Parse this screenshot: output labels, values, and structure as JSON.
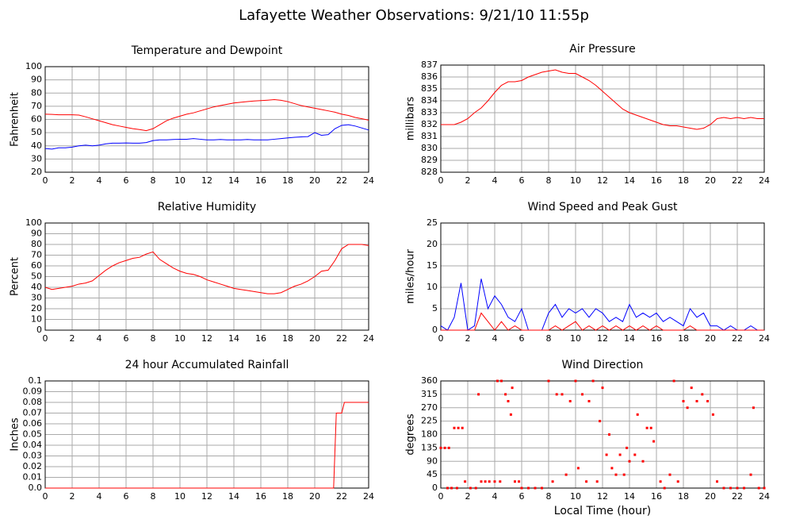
{
  "title": "Lafayette Weather Observations: 9/21/10 11:55p",
  "chart_data": [
    {
      "type": "line",
      "title": "Temperature and Dewpoint",
      "ylabel": "Fahrenheit",
      "x": [
        0,
        0.5,
        1,
        1.5,
        2,
        2.5,
        3,
        3.5,
        4,
        4.5,
        5,
        5.5,
        6,
        6.5,
        7,
        7.5,
        8,
        8.5,
        9,
        9.5,
        10,
        10.5,
        11,
        11.5,
        12,
        12.5,
        13,
        13.5,
        14,
        14.5,
        15,
        15.5,
        16,
        16.5,
        17,
        17.5,
        18,
        18.5,
        19,
        19.5,
        20,
        20.5,
        21,
        21.5,
        22,
        22.5,
        23,
        23.5,
        24
      ],
      "series": [
        {
          "color": "#ff0000",
          "values": [
            64,
            63.8,
            63.5,
            63.5,
            63.5,
            63.3,
            62,
            60.5,
            59,
            57.5,
            56,
            55,
            54,
            53,
            52.3,
            51.5,
            53,
            56,
            59,
            61,
            62.5,
            64,
            65,
            66.5,
            68,
            69.5,
            70.5,
            71.5,
            72.5,
            73,
            73.5,
            74,
            74.3,
            74.6,
            75,
            74.5,
            73.5,
            72,
            70.5,
            69.5,
            68.5,
            67.5,
            66.5,
            65.5,
            64,
            63,
            61.5,
            60.5,
            59.5
          ]
        },
        {
          "color": "#0000ff",
          "values": [
            38,
            37.5,
            38.5,
            38.5,
            39,
            40,
            40.5,
            40,
            40.5,
            41.5,
            42,
            42,
            42.2,
            42,
            42,
            42.5,
            44,
            44.5,
            44.5,
            44.8,
            45,
            45,
            45.5,
            45,
            44.5,
            44.5,
            44.8,
            44.5,
            44.5,
            44.5,
            44.8,
            44.5,
            44.5,
            44.5,
            45,
            45.5,
            46,
            46.5,
            46.8,
            47,
            50,
            48,
            48.5,
            53,
            55.5,
            56,
            55,
            53.5,
            52
          ]
        }
      ],
      "xlim": [
        0,
        24
      ],
      "xticks": [
        0,
        2,
        4,
        6,
        8,
        10,
        12,
        14,
        16,
        18,
        20,
        22,
        24
      ],
      "ylim": [
        20,
        100
      ],
      "yticks": [
        20,
        30,
        40,
        50,
        60,
        70,
        80,
        90,
        100
      ],
      "grid": true
    },
    {
      "type": "line",
      "title": "Air Pressure",
      "ylabel": "millibars",
      "x": [
        0,
        0.5,
        1,
        1.5,
        2,
        2.5,
        3,
        3.5,
        4,
        4.5,
        5,
        5.5,
        6,
        6.5,
        7,
        7.5,
        8,
        8.5,
        9,
        9.5,
        10,
        10.5,
        11,
        11.5,
        12,
        12.5,
        13,
        13.5,
        14,
        14.5,
        15,
        15.5,
        16,
        16.5,
        17,
        17.5,
        18,
        18.5,
        19,
        19.5,
        20,
        20.5,
        21,
        21.5,
        22,
        22.5,
        23,
        23.5,
        24
      ],
      "series": [
        {
          "color": "#ff0000",
          "values": [
            832,
            832,
            832,
            832.2,
            832.5,
            833,
            833.4,
            834,
            834.7,
            835.3,
            835.6,
            835.6,
            835.7,
            836,
            836.2,
            836.4,
            836.5,
            836.6,
            836.4,
            836.3,
            836.3,
            836,
            835.7,
            835.3,
            834.8,
            834.3,
            833.8,
            833.3,
            833,
            832.8,
            832.6,
            832.4,
            832.2,
            832,
            831.9,
            831.9,
            831.8,
            831.7,
            831.6,
            831.7,
            832,
            832.5,
            832.6,
            832.5,
            832.6,
            832.5,
            832.6,
            832.5,
            832.5
          ]
        }
      ],
      "xlim": [
        0,
        24
      ],
      "xticks": [
        0,
        2,
        4,
        6,
        8,
        10,
        12,
        14,
        16,
        18,
        20,
        22,
        24
      ],
      "ylim": [
        828,
        837
      ],
      "yticks": [
        828,
        829,
        830,
        831,
        832,
        833,
        834,
        835,
        836,
        837
      ],
      "grid": true
    },
    {
      "type": "line",
      "title": "Relative Humidity",
      "ylabel": "Percent",
      "x": [
        0,
        0.5,
        1,
        1.5,
        2,
        2.5,
        3,
        3.5,
        4,
        4.5,
        5,
        5.5,
        6,
        6.5,
        7,
        7.5,
        8,
        8.5,
        9,
        9.5,
        10,
        10.5,
        11,
        11.5,
        12,
        12.5,
        13,
        13.5,
        14,
        14.5,
        15,
        15.5,
        16,
        16.5,
        17,
        17.5,
        18,
        18.5,
        19,
        19.5,
        20,
        20.5,
        21,
        21.5,
        22,
        22.5,
        23,
        23.5,
        24
      ],
      "series": [
        {
          "color": "#ff0000",
          "values": [
            40,
            38,
            39,
            40,
            41,
            43,
            44,
            46,
            51,
            56,
            60,
            63,
            65,
            67,
            68,
            71,
            73,
            66,
            62,
            58,
            55,
            53,
            52,
            50,
            47,
            45,
            43,
            41,
            39,
            38,
            37,
            36,
            35,
            34,
            34,
            35,
            38,
            41,
            43,
            46,
            50,
            55,
            56,
            65,
            76,
            80,
            80,
            80,
            79
          ]
        }
      ],
      "xlim": [
        0,
        24
      ],
      "xticks": [
        0,
        2,
        4,
        6,
        8,
        10,
        12,
        14,
        16,
        18,
        20,
        22,
        24
      ],
      "ylim": [
        0,
        100
      ],
      "yticks": [
        0,
        10,
        20,
        30,
        40,
        50,
        60,
        70,
        80,
        90,
        100
      ],
      "grid": true
    },
    {
      "type": "line",
      "title": "Wind Speed and Peak Gust",
      "ylabel": "miles/hour",
      "x": [
        0,
        0.5,
        1,
        1.5,
        2,
        2.5,
        3,
        3.5,
        4,
        4.5,
        5,
        5.5,
        6,
        6.5,
        7,
        7.5,
        8,
        8.5,
        9,
        9.5,
        10,
        10.5,
        11,
        11.5,
        12,
        12.5,
        13,
        13.5,
        14,
        14.5,
        15,
        15.5,
        16,
        16.5,
        17,
        17.5,
        18,
        18.5,
        19,
        19.5,
        20,
        20.5,
        21,
        21.5,
        22,
        22.5,
        23,
        23.5,
        24
      ],
      "series": [
        {
          "color": "#0000ff",
          "values": [
            1,
            0,
            3,
            11,
            0,
            1,
            12,
            5,
            8,
            6,
            3,
            2,
            5,
            0,
            0,
            0,
            4,
            6,
            3,
            5,
            4,
            5,
            3,
            5,
            4,
            2,
            3,
            2,
            6,
            3,
            4,
            3,
            4,
            2,
            3,
            2,
            1,
            5,
            3,
            4,
            1,
            1,
            0,
            1,
            0,
            0,
            1,
            0,
            0
          ]
        },
        {
          "color": "#ff0000",
          "values": [
            0,
            0,
            0,
            0,
            0,
            0,
            4,
            2,
            0,
            2,
            0,
            1,
            0,
            0,
            0,
            0,
            0,
            1,
            0,
            1,
            2,
            0,
            1,
            0,
            1,
            0,
            1,
            0,
            1,
            0,
            1,
            0,
            1,
            0,
            0,
            0,
            0,
            1,
            0,
            0,
            0,
            0,
            0,
            0,
            0,
            0,
            0,
            0,
            0
          ]
        }
      ],
      "xlim": [
        0,
        24
      ],
      "xticks": [
        0,
        2,
        4,
        6,
        8,
        10,
        12,
        14,
        16,
        18,
        20,
        22,
        24
      ],
      "ylim": [
        0,
        25
      ],
      "yticks": [
        0,
        5,
        10,
        15,
        20,
        25
      ],
      "grid": true
    },
    {
      "type": "line",
      "title": "24 hour Accumulated Rainfall",
      "ylabel": "Inches",
      "x": [
        0,
        21.4,
        21.6,
        22,
        22.2,
        24
      ],
      "series": [
        {
          "color": "#ff0000",
          "values": [
            0,
            0,
            0.07,
            0.07,
            0.08,
            0.08
          ]
        }
      ],
      "xlim": [
        0,
        24
      ],
      "xticks": [
        0,
        2,
        4,
        6,
        8,
        10,
        12,
        14,
        16,
        18,
        20,
        22,
        24
      ],
      "ylim": [
        0,
        0.1
      ],
      "yticks": [
        {
          "value": 0,
          "label": "0.0"
        },
        0.01,
        0.02,
        0.03,
        0.04,
        0.05,
        0.06,
        0.07,
        0.08,
        0.09,
        0.1
      ],
      "grid": true
    },
    {
      "type": "scatter",
      "title": "Wind Direction",
      "ylabel": "degrees",
      "xlabel": "Local Time (hour)",
      "color": "#ff0000",
      "x": [
        0,
        0.3,
        0.6,
        0.5,
        0.8,
        1,
        1.3,
        1.6,
        1.2,
        1.8,
        2.2,
        2.6,
        2.8,
        3,
        3.3,
        3.6,
        4,
        4.2,
        4.5,
        4.4,
        4.8,
        5,
        5.2,
        5.3,
        5.5,
        5.8,
        6,
        6.5,
        7,
        7.5,
        8,
        8.3,
        8.6,
        9,
        9.3,
        9.6,
        10,
        10.2,
        10.5,
        10.8,
        11,
        11.3,
        11.6,
        11.8,
        12,
        12.3,
        12.5,
        12.7,
        13,
        13.3,
        13.6,
        13.8,
        14,
        14.4,
        14.6,
        15,
        15.3,
        15.6,
        15.8,
        16.3,
        16.6,
        17,
        17.3,
        17.6,
        18,
        18.3,
        18.6,
        19,
        19.4,
        19.8,
        20.2,
        20.5,
        21,
        21.5,
        22,
        22.5,
        23,
        23.2,
        23.6,
        24
      ],
      "values": [
        135,
        135,
        135,
        0,
        0,
        202,
        202,
        202,
        0,
        22,
        0,
        0,
        315,
        22,
        22,
        22,
        22,
        360,
        360,
        22,
        315,
        292,
        247,
        337,
        22,
        22,
        0,
        0,
        0,
        0,
        360,
        22,
        315,
        315,
        45,
        292,
        360,
        67,
        315,
        22,
        292,
        360,
        22,
        225,
        337,
        112,
        180,
        67,
        45,
        112,
        45,
        135,
        90,
        112,
        247,
        90,
        202,
        202,
        157,
        22,
        0,
        45,
        360,
        22,
        292,
        270,
        337,
        292,
        315,
        292,
        247,
        22,
        0,
        0,
        0,
        0,
        45,
        270,
        0,
        0
      ],
      "xlim": [
        0,
        24
      ],
      "xticks": [
        0,
        2,
        4,
        6,
        8,
        10,
        12,
        14,
        16,
        18,
        20,
        22,
        24
      ],
      "ylim": [
        0,
        360
      ],
      "yticks": [
        0,
        45,
        90,
        135,
        180,
        225,
        270,
        315,
        360
      ],
      "grid": true
    }
  ]
}
